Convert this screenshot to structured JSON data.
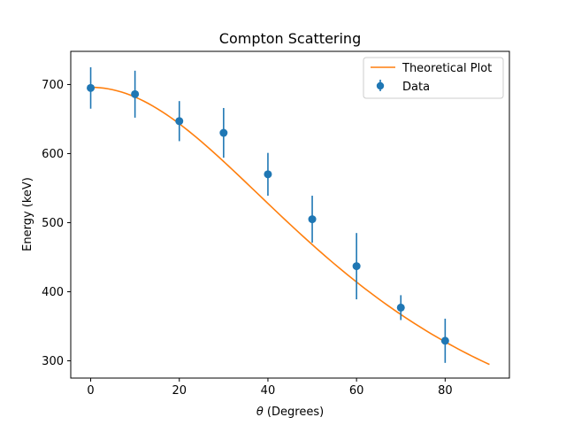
{
  "chart_data": {
    "type": "scatter",
    "title": "Compton Scattering",
    "xlabel": "θ (Degrees)",
    "xlabel_symbol": "θ",
    "xlabel_rest": " (Degrees)",
    "ylabel": "Energy (keV)",
    "xlim": [
      -4.5,
      94.5
    ],
    "ylim": [
      275,
      748
    ],
    "xticks": [
      0,
      20,
      40,
      60,
      80
    ],
    "yticks": [
      300,
      400,
      500,
      600,
      700
    ],
    "grid": false,
    "legend_position": "top-right",
    "series": [
      {
        "name": "Theoretical Plot",
        "kind": "line",
        "color": "#ff7f0e",
        "E0_keV": 696,
        "x_range": [
          0,
          90
        ]
      },
      {
        "name": "Data",
        "kind": "errorbar",
        "color": "#1f77b4",
        "x": [
          0,
          10,
          20,
          30,
          40,
          50,
          60,
          70,
          80
        ],
        "y": [
          695,
          686,
          647,
          630,
          570,
          505,
          437,
          377,
          329
        ],
        "yerr": [
          30,
          34,
          29,
          36,
          31,
          34,
          48,
          18,
          32
        ]
      }
    ]
  }
}
